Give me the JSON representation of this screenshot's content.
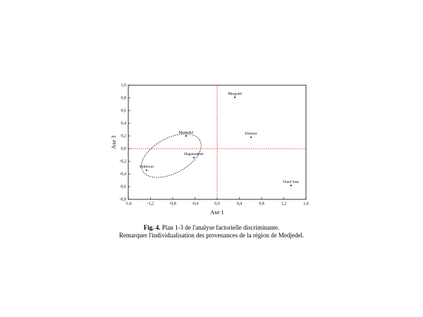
{
  "chart_data": {
    "type": "scatter",
    "xlabel": "Axe 1",
    "ylabel": "Axe 3",
    "xlim": [
      -1.6,
      1.6
    ],
    "xticks": [
      {
        "value": -1.6,
        "label": "-1,6"
      },
      {
        "value": -1.2,
        "label": "-1,2"
      },
      {
        "value": -0.8,
        "label": "-0,8"
      },
      {
        "value": -0.4,
        "label": "-0,4"
      },
      {
        "value": 0,
        "label": "0,0"
      },
      {
        "value": 0.4,
        "label": "0,4"
      },
      {
        "value": 0.8,
        "label": "0,8"
      },
      {
        "value": 1.2,
        "label": "1,2"
      },
      {
        "value": 1.6,
        "label": "1,6"
      }
    ],
    "ylim": [
      -0.8,
      1.0
    ],
    "yticks": [
      {
        "value": -0.8,
        "label": "-0,8"
      },
      {
        "value": -0.6,
        "label": "-0,6"
      },
      {
        "value": -0.4,
        "label": "-0,4"
      },
      {
        "value": -0.2,
        "label": "-0,2"
      },
      {
        "value": 0,
        "label": "0,0"
      },
      {
        "value": 0.2,
        "label": "0,2"
      },
      {
        "value": 0.4,
        "label": "0,4"
      },
      {
        "value": 0.6,
        "label": "0,6"
      },
      {
        "value": 0.8,
        "label": "0,8"
      },
      {
        "value": 1.0,
        "label": "1,0"
      }
    ],
    "color": "#3333cc",
    "reference_line_color": "#ff0000",
    "point_labels": [
      "Mergueb",
      "Elkseur",
      "Medjedel",
      "Hagueudene",
      "Sidibrour",
      "Oued Saar"
    ],
    "x": [
      0.32,
      0.61,
      -0.56,
      -0.42,
      -1.27,
      1.33
    ],
    "values": [
      0.81,
      0.18,
      0.2,
      -0.14,
      -0.34,
      -0.58
    ]
  },
  "caption": {
    "figure": "Fig. 4.",
    "line1": "Plan 1-3 de l'analyse factorielle discriminante.",
    "line2": "Remarquer l'individualisation des provenances de la région de Medjedel."
  }
}
